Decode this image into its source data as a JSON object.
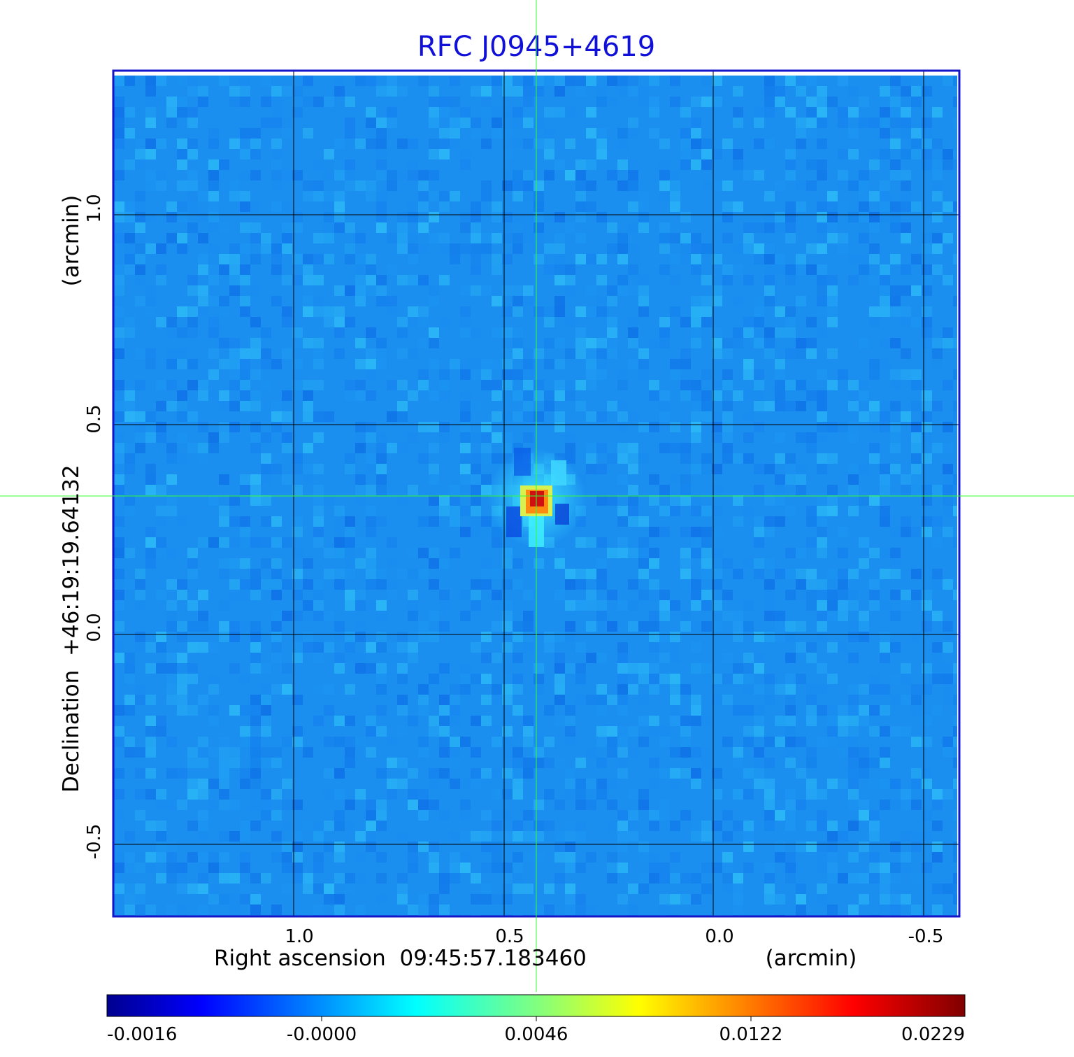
{
  "title": "RFC J0945+4619",
  "x_axis": {
    "label": "Right ascension  09:45:57.183460",
    "unit": "(arcmin)",
    "ticks": [
      "1.0",
      "0.5",
      "0.0",
      "-0.5"
    ],
    "tick_values": [
      1.0,
      0.5,
      0.0,
      -0.5
    ]
  },
  "y_axis": {
    "label": "Declination  +46:19:19.64132",
    "unit": "(arcmin)",
    "ticks": [
      "1.0",
      "0.5",
      "0.0",
      "-0.5"
    ],
    "tick_values": [
      1.0,
      0.5,
      0.0,
      -0.5
    ]
  },
  "colorbar": {
    "ticks": [
      "-0.0016",
      "-0.0000",
      "0.0046",
      "0.0122",
      "0.0229"
    ],
    "colormap": "jet"
  },
  "colors": {
    "title": "#1010d8",
    "frame": "#1515c8",
    "crosshair": "#33ff33",
    "grid": "#000000",
    "background_field": "#1a8ff0",
    "peak": "#d01010"
  },
  "image": {
    "source_offset_arcmin": [
      0.43,
      0.33
    ],
    "peak_value": 0.0229
  }
}
